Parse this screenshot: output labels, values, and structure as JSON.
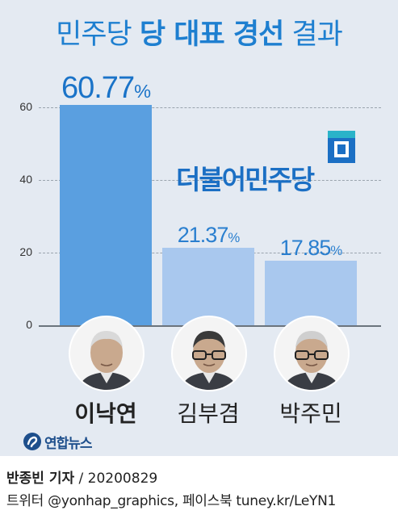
{
  "title": {
    "light_start": "민주당",
    "bold": "당 대표 경선",
    "light_end": "결과"
  },
  "party_logo_text": "더불어민주당",
  "chart_data": {
    "type": "bar",
    "title": "민주당 당 대표 경선 결과",
    "categories": [
      "이낙연",
      "김부겸",
      "박주민"
    ],
    "values": [
      60.77,
      21.37,
      17.85
    ],
    "value_labels": [
      "60.77",
      "21.37",
      "17.85"
    ],
    "unit": "%",
    "ylim": [
      0,
      70
    ],
    "yticks": [
      0,
      20,
      40,
      60
    ],
    "grid": true,
    "winner_index": 0,
    "colors": {
      "winner": "#5a9fe0",
      "other": "#a9c8ee",
      "title": "#1e7fd0",
      "winner_label": "#1a73c8",
      "other_label": "#2a7fcf"
    }
  },
  "brand": {
    "name": "연합뉴스"
  },
  "credit": {
    "reporter": "반종빈  기자",
    "date": "20200829"
  },
  "social": {
    "text": "트위터 @yonhap_graphics, 페이스북 tuney.kr/LeYN1"
  }
}
